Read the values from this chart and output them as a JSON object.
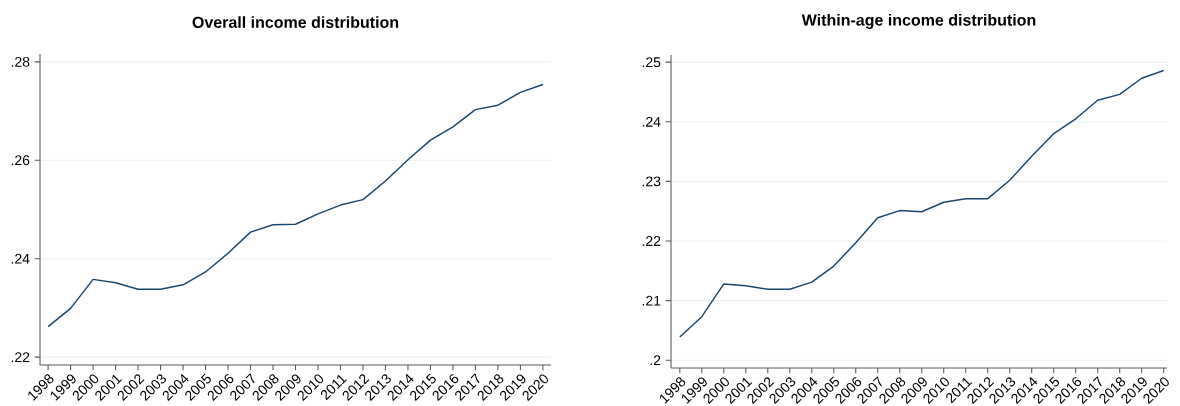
{
  "chart_data": [
    {
      "type": "line",
      "title": "Overall income distribution",
      "categories": [
        "1998",
        "1999",
        "2000",
        "2001",
        "2002",
        "2003",
        "2004",
        "2005",
        "2006",
        "2007",
        "2008",
        "2009",
        "2010",
        "2011",
        "2012",
        "2013",
        "2014",
        "2015",
        "2016",
        "2017",
        "2018",
        "2019",
        "2020"
      ],
      "series": [
        {
          "color": "#1a476f",
          "values": [
            0.2262,
            0.2299,
            0.2358,
            0.2351,
            0.2338,
            0.2338,
            0.2347,
            0.2373,
            0.2411,
            0.2454,
            0.2469,
            0.247,
            0.2491,
            0.2509,
            0.252,
            0.2558,
            0.2601,
            0.2641,
            0.2668,
            0.2703,
            0.2712,
            0.2738,
            0.2754
          ]
        }
      ],
      "ylim": [
        0.2184,
        0.2816
      ],
      "yticks": [
        {
          "value": 0.22,
          "label": ".22"
        },
        {
          "value": 0.24,
          "label": ".24"
        },
        {
          "value": 0.26,
          "label": ".26"
        },
        {
          "value": 0.28,
          "label": ".28"
        }
      ],
      "grid": "y",
      "marker": "none",
      "line_style": "solid"
    },
    {
      "type": "line",
      "title": "Within-age income distribution",
      "categories": [
        "1998",
        "1999",
        "2000",
        "2001",
        "2002",
        "2003",
        "2004",
        "2005",
        "2006",
        "2007",
        "2008",
        "2009",
        "2010",
        "2011",
        "2012",
        "2013",
        "2014",
        "2015",
        "2016",
        "2017",
        "2018",
        "2019",
        "2020"
      ],
      "series": [
        {
          "color": "#1a476f",
          "values": [
            0.2039,
            0.2073,
            0.2128,
            0.2125,
            0.2119,
            0.2119,
            0.2131,
            0.2158,
            0.2197,
            0.2239,
            0.2251,
            0.2249,
            0.2265,
            0.2271,
            0.2271,
            0.2302,
            0.2342,
            0.238,
            0.2405,
            0.2436,
            0.2446,
            0.2473,
            0.2486
          ]
        }
      ],
      "ylim": [
        0.1987,
        0.2512
      ],
      "yticks": [
        {
          "value": 0.2,
          "label": ".2"
        },
        {
          "value": 0.21,
          "label": ".21"
        },
        {
          "value": 0.22,
          "label": ".22"
        },
        {
          "value": 0.23,
          "label": ".23"
        },
        {
          "value": 0.24,
          "label": ".24"
        },
        {
          "value": 0.25,
          "label": ".25"
        }
      ],
      "grid": "y",
      "marker": "none",
      "line_style": "solid"
    }
  ]
}
